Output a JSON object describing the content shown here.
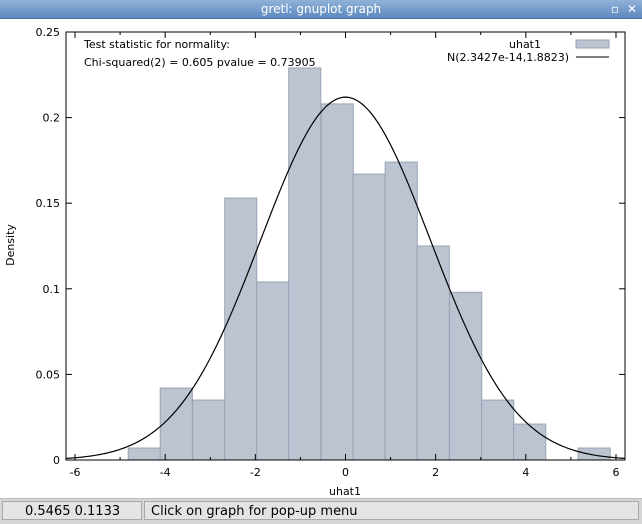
{
  "window": {
    "title": "gretl: gnuplot graph",
    "minimize_glyph": "▫",
    "close_glyph": "✕"
  },
  "status": {
    "coords": "0.5465 0.1133",
    "message": "Click on graph for pop-up menu"
  },
  "chart_data": {
    "type": "bar",
    "xlabel": "uhat1",
    "ylabel": "Density",
    "xlim": [
      -6.2,
      6.2
    ],
    "ylim": [
      0,
      0.25
    ],
    "xticks": [
      "-6",
      "-4",
      "-2",
      "0",
      "2",
      "4",
      "6"
    ],
    "xtick_values": [
      -6,
      -4,
      -2,
      0,
      2,
      4,
      6
    ],
    "yticks": [
      "0",
      "0.05",
      "0.1",
      "0.15",
      "0.2",
      "0.25"
    ],
    "ytick_values": [
      0,
      0.05,
      0.1,
      0.15,
      0.2,
      0.25
    ],
    "annotations": [
      "Test statistic for normality:",
      "Chi-squared(2) = 0.605 pvalue = 0.73905"
    ],
    "legend_position": "top-right",
    "grid": false,
    "series": [
      {
        "name": "uhat1",
        "kind": "histogram",
        "color": "#bcc4d2",
        "edge_color": "#9aa3b3",
        "bin_width": 0.7125,
        "bin_left": [
          -4.82,
          -4.11,
          -3.39,
          -2.68,
          -1.97,
          -1.26,
          -0.54,
          0.17,
          0.88,
          1.59,
          2.31,
          3.02,
          3.73,
          5.16
        ],
        "values": [
          0.007,
          0.042,
          0.035,
          0.153,
          0.104,
          0.229,
          0.208,
          0.167,
          0.174,
          0.125,
          0.098,
          0.035,
          0.021,
          0.007
        ]
      },
      {
        "name": "N(2.3427e-14,1.8823)",
        "kind": "line",
        "color": "#000000",
        "mean": 0,
        "sd": 1.8823
      }
    ]
  }
}
